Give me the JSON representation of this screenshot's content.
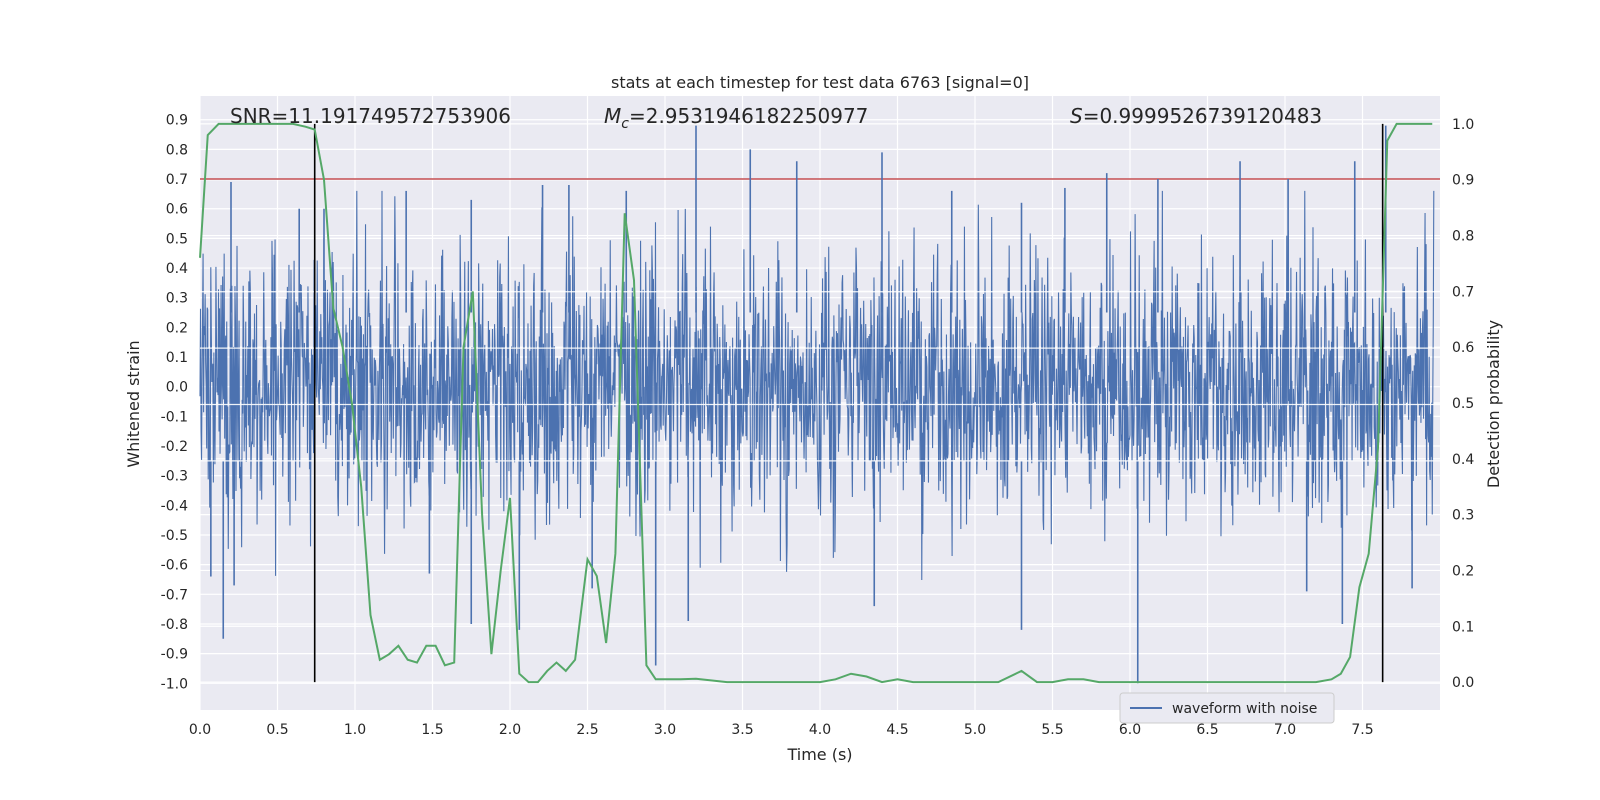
{
  "chart_data": {
    "type": "line",
    "title": "stats at each timestep for test data 6763 [signal=0]",
    "xlabel": "Time (s)",
    "ylabel_left": "Whitened strain",
    "ylabel_right": "Detection probability",
    "xlim": [
      0,
      8
    ],
    "ylim_left": [
      -1.09,
      0.98
    ],
    "ylim_right": [
      -0.05,
      1.05
    ],
    "x_ticks": [
      "0.0",
      "0.5",
      "1.0",
      "1.5",
      "2.0",
      "2.5",
      "3.0",
      "3.5",
      "4.0",
      "4.5",
      "5.0",
      "5.5",
      "6.0",
      "6.5",
      "7.0",
      "7.5"
    ],
    "y_ticks_left": [
      "0.9",
      "0.8",
      "0.7",
      "0.6",
      "0.5",
      "0.4",
      "0.3",
      "0.2",
      "0.1",
      "0.0",
      "-0.1",
      "-0.2",
      "-0.3",
      "-0.4",
      "-0.5",
      "-0.6",
      "-0.7",
      "-0.8",
      "-0.9",
      "-1.0"
    ],
    "y_ticks_right": [
      "1.0",
      "0.9",
      "0.8",
      "0.7",
      "0.6",
      "0.5",
      "0.4",
      "0.3",
      "0.2",
      "0.1",
      "0.0"
    ],
    "annotations": {
      "snr": "SNR=11.191749572753906",
      "mc_symbol": "M",
      "mc_sub": "c",
      "mc_value": "=2.9531946182250977",
      "s_symbol": "S",
      "s_value": "=0.9999526739120483"
    },
    "threshold": {
      "y": 0.7,
      "color": "#c44e52"
    },
    "vertical_lines": [
      0.74,
      7.63
    ],
    "waveform": {
      "name": "waveform with noise",
      "color": "#4c72b0",
      "envelope_typical": 0.32,
      "peaks_positive": [
        [
          0.2,
          0.69
        ],
        [
          0.64,
          0.6
        ],
        [
          0.8,
          0.6
        ],
        [
          1.33,
          0.66
        ],
        [
          1.75,
          0.63
        ],
        [
          2.21,
          0.68
        ],
        [
          2.38,
          0.68
        ],
        [
          2.75,
          0.66
        ],
        [
          3.2,
          0.88
        ],
        [
          3.55,
          0.8
        ],
        [
          3.85,
          0.76
        ],
        [
          4.4,
          0.79
        ],
        [
          4.85,
          0.66
        ],
        [
          5.3,
          0.62
        ],
        [
          5.58,
          0.67
        ],
        [
          5.85,
          0.72
        ],
        [
          6.18,
          0.7
        ],
        [
          6.71,
          0.76
        ],
        [
          7.02,
          0.7
        ],
        [
          7.45,
          0.76
        ],
        [
          7.65,
          0.88
        ]
      ],
      "peaks_negative": [
        [
          0.07,
          -0.64
        ],
        [
          0.15,
          -0.85
        ],
        [
          0.22,
          -0.67
        ],
        [
          1.48,
          -0.63
        ],
        [
          1.75,
          -0.8
        ],
        [
          2.06,
          -0.82
        ],
        [
          2.53,
          -0.68
        ],
        [
          2.94,
          -0.94
        ],
        [
          3.15,
          -0.79
        ],
        [
          4.35,
          -0.74
        ],
        [
          5.3,
          -0.82
        ],
        [
          6.05,
          -1.0
        ],
        [
          7.14,
          -0.69
        ],
        [
          7.37,
          -0.8
        ],
        [
          7.82,
          -0.68
        ]
      ]
    },
    "probability": {
      "name": "detection probability",
      "color": "#55a868",
      "x": [
        0.0,
        0.05,
        0.12,
        0.2,
        0.3,
        0.4,
        0.5,
        0.6,
        0.68,
        0.74,
        0.8,
        0.86,
        0.92,
        0.98,
        1.04,
        1.1,
        1.16,
        1.22,
        1.28,
        1.34,
        1.4,
        1.46,
        1.52,
        1.58,
        1.64,
        1.7,
        1.76,
        1.82,
        1.88,
        1.94,
        2.0,
        2.06,
        2.12,
        2.18,
        2.24,
        2.3,
        2.36,
        2.42,
        2.5,
        2.56,
        2.62,
        2.68,
        2.74,
        2.8,
        2.88,
        2.94,
        3.0,
        3.1,
        3.2,
        3.4,
        3.6,
        3.8,
        4.0,
        4.1,
        4.2,
        4.3,
        4.4,
        4.5,
        4.6,
        4.8,
        5.0,
        5.15,
        5.3,
        5.4,
        5.5,
        5.6,
        5.7,
        5.8,
        5.9,
        6.0,
        6.2,
        6.5,
        6.8,
        7.0,
        7.2,
        7.3,
        7.36,
        7.42,
        7.48,
        7.54,
        7.6,
        7.66,
        7.72,
        7.8,
        7.9,
        7.95
      ],
      "y": [
        0.76,
        0.98,
        1.0,
        1.0,
        1.0,
        1.0,
        1.0,
        1.0,
        0.995,
        0.99,
        0.9,
        0.67,
        0.6,
        0.5,
        0.35,
        0.12,
        0.04,
        0.05,
        0.065,
        0.04,
        0.035,
        0.065,
        0.065,
        0.03,
        0.035,
        0.6,
        0.7,
        0.3,
        0.05,
        0.2,
        0.33,
        0.015,
        0.0,
        0.0,
        0.02,
        0.035,
        0.02,
        0.04,
        0.22,
        0.19,
        0.07,
        0.23,
        0.84,
        0.72,
        0.03,
        0.005,
        0.005,
        0.005,
        0.006,
        0.0,
        0.0,
        0.0,
        0.0,
        0.005,
        0.015,
        0.01,
        0.0,
        0.005,
        0.0,
        0.0,
        0.0,
        0.0,
        0.02,
        0.0,
        0.0,
        0.005,
        0.005,
        0.0,
        0.0,
        0.0,
        0.0,
        0.0,
        0.0,
        0.0,
        0.0,
        0.005,
        0.015,
        0.045,
        0.17,
        0.23,
        0.42,
        0.97,
        1.0,
        1.0,
        1.0,
        1.0
      ]
    },
    "legend": {
      "label": "waveform with noise",
      "placement": "lower-right"
    },
    "background_color": "#eaeaf2",
    "grid": true
  }
}
